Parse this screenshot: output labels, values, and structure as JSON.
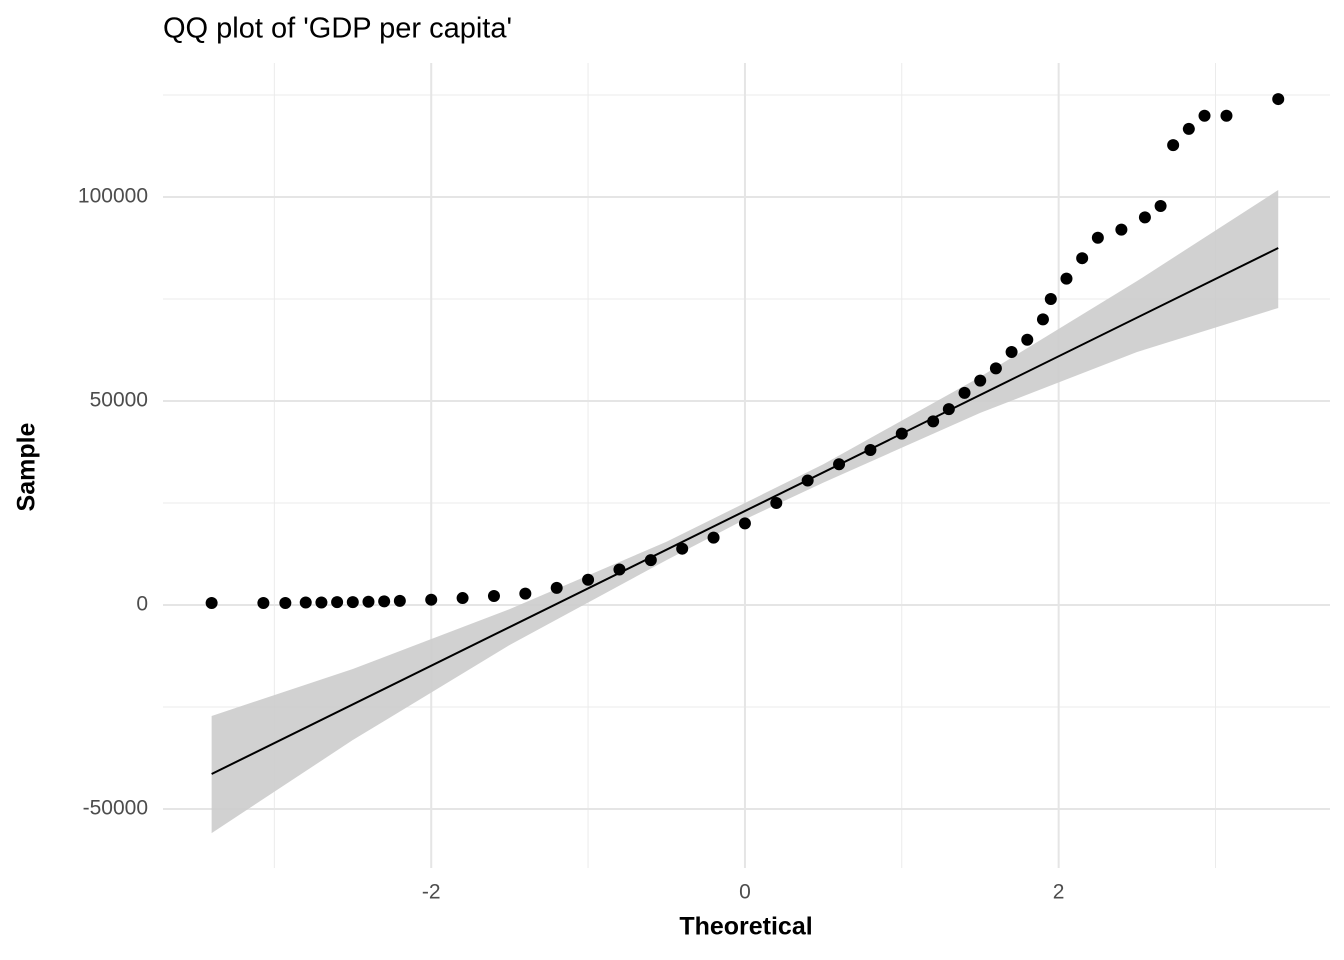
{
  "chart_data": {
    "type": "scatter",
    "title": "QQ plot of 'GDP per capita'",
    "x_label": "Theoretical",
    "y_label": "Sample",
    "xlim": [
      -3.71,
      3.73
    ],
    "ylim": [
      -64460,
      132840
    ],
    "xticks": [
      -2,
      0,
      2
    ],
    "yticks": [
      -50000,
      0,
      50000,
      100000
    ],
    "x_minor_ticks": [
      -3,
      -1,
      1,
      3
    ],
    "y_minor_ticks": [
      -25000,
      25000,
      75000,
      125000
    ],
    "grid": true,
    "color": "#000000",
    "x": [
      -3.4,
      -3.07,
      -2.93,
      -2.8,
      -2.7,
      -2.6,
      -2.5,
      -2.4,
      -2.3,
      -2.2,
      -2.0,
      -1.8,
      -1.6,
      -1.4,
      -1.2,
      -1.0,
      -0.8,
      -0.6,
      -0.4,
      -0.2,
      0,
      0.2,
      0.4,
      0.6,
      0.8,
      1.0,
      1.2,
      1.3,
      1.4,
      1.5,
      1.6,
      1.7,
      1.8,
      1.9,
      1.95,
      2.05,
      2.15,
      2.25,
      2.4,
      2.55,
      2.65,
      2.73,
      2.83,
      2.93,
      3.07,
      3.4
    ],
    "values": [
      500,
      500,
      500,
      600,
      600,
      700,
      700,
      800,
      900,
      1000,
      1300,
      1700,
      2200,
      2800,
      4200,
      6200,
      8700,
      11000,
      13800,
      16500,
      20000,
      25000,
      30500,
      34500,
      38000,
      42000,
      45000,
      48000,
      52000,
      55000,
      58000,
      62000,
      65000,
      70000,
      75000,
      80000,
      85000,
      90000,
      92000,
      95000,
      97800,
      112700,
      116700,
      119900,
      119900,
      124000
    ],
    "reference_line": {
      "color": "#000000",
      "x": [
        -3.4,
        3.4
      ],
      "values": [
        -41420,
        87500
      ]
    },
    "band": {
      "color": "#cccccc",
      "x": [
        -3.4,
        -2.5,
        -1.5,
        -0.5,
        0,
        0.5,
        1.5,
        2.5,
        3.4
      ],
      "lower": [
        -55900,
        -33100,
        -9800,
        11000,
        21000,
        30000,
        47100,
        62000,
        72800
      ],
      "upper": [
        -27200,
        -15700,
        -1000,
        15500,
        25000,
        34500,
        55900,
        79400,
        101700
      ]
    }
  }
}
